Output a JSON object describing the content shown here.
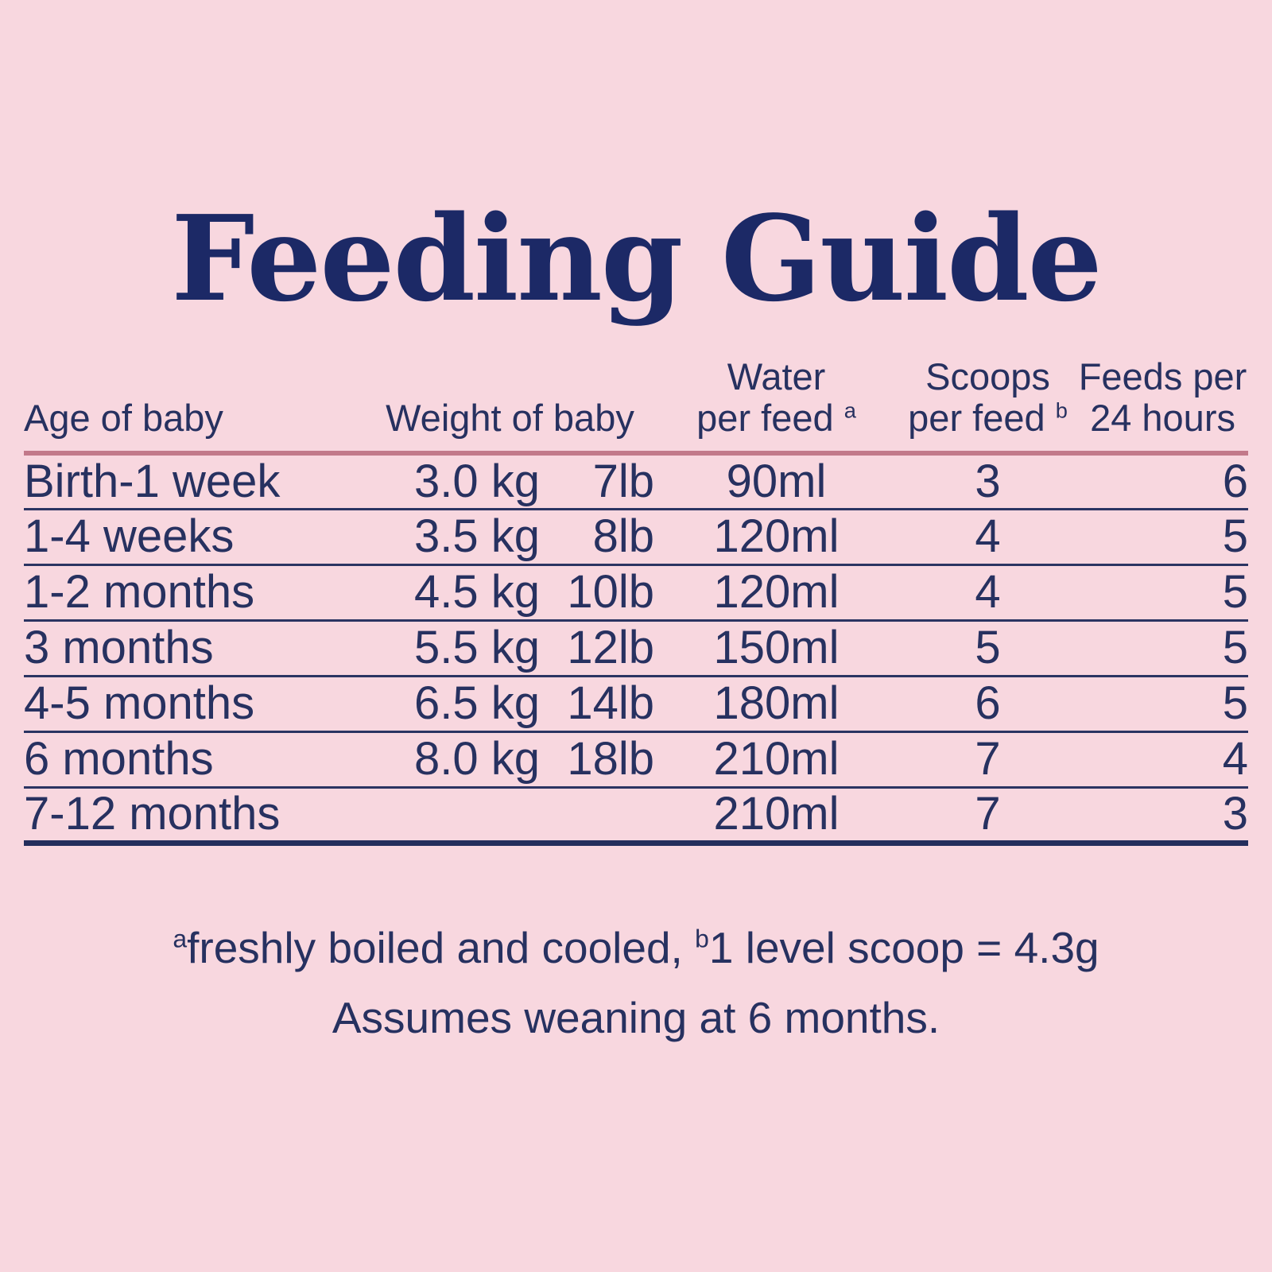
{
  "title": "Feeding Guide",
  "colors": {
    "background": "#f8d7df",
    "text_navy": "#273160",
    "title_navy": "#1c2966",
    "header_rule_rose": "#c2798a",
    "row_rule_navy": "#2b3462"
  },
  "table": {
    "headers": {
      "age": "Age of baby",
      "weight": "Weight of baby",
      "water_line1": "Water",
      "water_line2": "per feed",
      "water_sup": "a",
      "scoops_line1": "Scoops",
      "scoops_line2": "per feed",
      "scoops_sup": "b",
      "feeds_line1": "Feeds per",
      "feeds_line2": "24 hours"
    },
    "rows": [
      {
        "age": "Birth-1 week",
        "kg": "3.0 kg",
        "lb": "7lb",
        "water": "90ml",
        "scoops": "3",
        "feeds": "6"
      },
      {
        "age": "1-4 weeks",
        "kg": "3.5 kg",
        "lb": "8lb",
        "water": "120ml",
        "scoops": "4",
        "feeds": "5"
      },
      {
        "age": "1-2 months",
        "kg": "4.5 kg",
        "lb": "10lb",
        "water": "120ml",
        "scoops": "4",
        "feeds": "5"
      },
      {
        "age": "3 months",
        "kg": "5.5 kg",
        "lb": "12lb",
        "water": "150ml",
        "scoops": "5",
        "feeds": "5"
      },
      {
        "age": "4-5 months",
        "kg": "6.5 kg",
        "lb": "14lb",
        "water": "180ml",
        "scoops": "6",
        "feeds": "5"
      },
      {
        "age": "6 months",
        "kg": "8.0 kg",
        "lb": "18lb",
        "water": "210ml",
        "scoops": "7",
        "feeds": "4"
      },
      {
        "age": "7-12 months",
        "kg": "",
        "lb": "",
        "water": "210ml",
        "scoops": "7",
        "feeds": "3"
      }
    ]
  },
  "footnotes": {
    "sup_a": "a",
    "line1_part1": "freshly boiled and cooled, ",
    "sup_b": "b",
    "line1_part2": "1 level scoop = 4.3g",
    "line2": "Assumes weaning at 6 months."
  }
}
